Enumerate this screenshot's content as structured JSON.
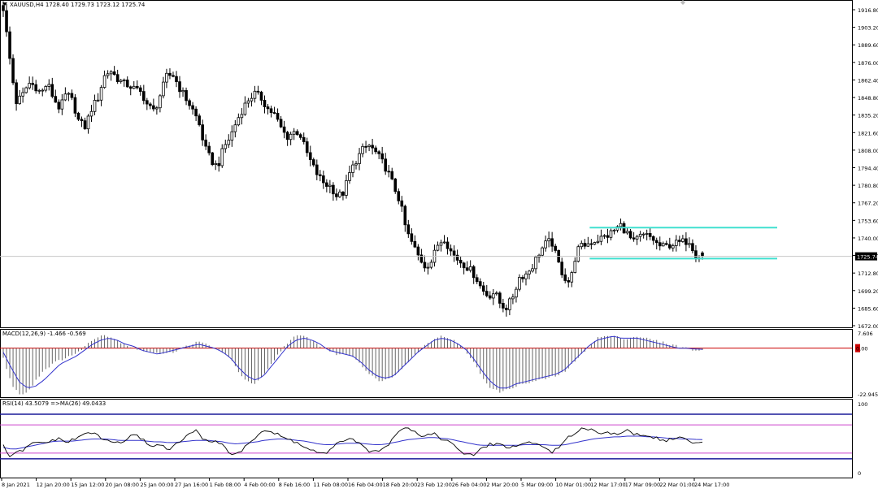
{
  "window": {
    "menu_icon": "triangle-down-icon",
    "symbol_header": "XAUUSD,H4  1728.40 1729.73 1723.12 1725.74",
    "corner_icon": "diamond-icon"
  },
  "colors": {
    "background": "#ffffff",
    "frame": "#000000",
    "candle": "#000000",
    "channel": "#40e0d0",
    "signal_line": "#3333cc",
    "zero_line": "#cc0000",
    "rsi_band": "#cc44cc",
    "rsi_level": "#1a1a99",
    "last_price_label_bg": "#000000",
    "macd_zero_label_bg": "#cc0000"
  },
  "price_panel": {
    "y_tick_labels": [
      "1916.80",
      "1903.20",
      "1889.60",
      "1876.00",
      "1862.40",
      "1848.80",
      "1835.20",
      "1821.60",
      "1808.00",
      "1794.40",
      "1780.80",
      "1767.20",
      "1753.60",
      "1740.00",
      "1726.40",
      "1712.80",
      "1699.20",
      "1685.60",
      "1672.00"
    ],
    "last_price_label": "1725.74"
  },
  "macd_panel": {
    "header": "MACD(12,26,9) -1.466 -0.569",
    "y_tick_labels": [
      "7.606",
      "-22.945"
    ],
    "zero_label": "0.00"
  },
  "rsi_panel": {
    "header": "RSI(14) 43.5079  =>MA(26) 49.0433",
    "y_tick_labels": [
      "100",
      "0"
    ]
  },
  "time_axis": {
    "labels": [
      "8 Jan 2021",
      "12 Jan 20:00",
      "15 Jan 12:00",
      "20 Jan 08:00",
      "25 Jan 00:00",
      "27 Jan 16:00",
      "1 Feb 08:00",
      "4 Feb 00:00",
      "8 Feb 16:00",
      "11 Feb 08:00",
      "16 Feb 04:00",
      "18 Feb 20:00",
      "23 Feb 12:00",
      "26 Feb 04:00",
      "2 Mar 20:00",
      "5 Mar 09:00",
      "10 Mar 01:00",
      "12 Mar 17:00",
      "17 Mar 09:00",
      "22 Mar 01:00",
      "24 Mar 17:00"
    ]
  },
  "chart_data": [
    {
      "type": "candlestick",
      "symbol": "XAUUSD",
      "timeframe": "H4",
      "last_bar": {
        "open": 1728.4,
        "high": 1729.73,
        "low": 1723.12,
        "close": 1725.74
      },
      "ylim": [
        1672.0,
        1916.8
      ],
      "x_tick_labels": [
        "8 Jan 2021",
        "12 Jan 20:00",
        "15 Jan 12:00",
        "20 Jan 08:00",
        "25 Jan 00:00",
        "27 Jan 16:00",
        "1 Feb 08:00",
        "4 Feb 00:00",
        "8 Feb 16:00",
        "11 Feb 08:00",
        "16 Feb 04:00",
        "18 Feb 20:00",
        "23 Feb 12:00",
        "26 Feb 04:00",
        "2 Mar 20:00",
        "5 Mar 09:00",
        "10 Mar 01:00",
        "12 Mar 17:00",
        "17 Mar 09:00",
        "22 Mar 01:00",
        "24 Mar 17:00"
      ],
      "close_path": [
        1918,
        1880,
        1845,
        1850,
        1860,
        1858,
        1852,
        1860,
        1848,
        1840,
        1852,
        1846,
        1830,
        1826,
        1840,
        1848,
        1865,
        1870,
        1864,
        1860,
        1858,
        1855,
        1852,
        1842,
        1838,
        1852,
        1866,
        1866,
        1856,
        1848,
        1840,
        1830,
        1810,
        1800,
        1795,
        1810,
        1818,
        1830,
        1840,
        1848,
        1852,
        1848,
        1840,
        1836,
        1826,
        1818,
        1822,
        1822,
        1808,
        1797,
        1788,
        1782,
        1780,
        1772,
        1775,
        1790,
        1800,
        1808,
        1812,
        1807,
        1800,
        1792,
        1780,
        1768,
        1745,
        1735,
        1725,
        1718,
        1722,
        1735,
        1740,
        1730,
        1724,
        1720,
        1716,
        1710,
        1700,
        1695,
        1698,
        1688,
        1686,
        1696,
        1710,
        1712,
        1718,
        1728,
        1735,
        1738,
        1722,
        1710,
        1705,
        1730,
        1734,
        1736,
        1738,
        1740,
        1742,
        1746,
        1750,
        1744,
        1736,
        1741,
        1742,
        1740,
        1734,
        1733,
        1735,
        1736,
        1737,
        1738,
        1726,
        1725.74
      ],
      "channel": {
        "upper": 1748.0,
        "lower": 1724.0
      },
      "annotations": []
    },
    {
      "type": "macd",
      "parameters": [
        12,
        26,
        9
      ],
      "title": "MACD(12,26,9) -1.466 -0.569",
      "values": {
        "main": -1.466,
        "signal": -0.569
      },
      "ylim": [
        -22.945,
        7.606
      ],
      "histogram_path": [
        -5,
        -18,
        -23,
        -22,
        -16,
        -11,
        -8,
        -6,
        -4,
        -3,
        1,
        4,
        7,
        6,
        4,
        2,
        0,
        -1,
        -2,
        -3,
        -2,
        -2,
        0,
        2,
        3,
        2,
        0,
        -2,
        -6,
        -12,
        -17,
        -18,
        -14,
        -8,
        -2,
        3,
        6,
        6,
        4,
        1,
        -1,
        -3,
        -3,
        -4,
        -8,
        -13,
        -16,
        -16,
        -14,
        -10,
        -6,
        -2,
        2,
        5,
        6,
        5,
        2,
        -2,
        -8,
        -15,
        -20,
        -22,
        -21,
        -19,
        -18,
        -17,
        -16,
        -15,
        -14,
        -12,
        -8,
        -4,
        1,
        5,
        6,
        6,
        5,
        5,
        6,
        5,
        4,
        3,
        2,
        1,
        0,
        -1,
        -1.466
      ],
      "signal_path": [
        -2,
        -10,
        -17,
        -20,
        -19,
        -16,
        -12,
        -8,
        -6,
        -4,
        -1,
        2,
        4,
        5,
        4,
        2,
        1,
        -1,
        -2,
        -3,
        -2,
        -1,
        0,
        1,
        2,
        1,
        0,
        -2,
        -5,
        -10,
        -14,
        -16,
        -14,
        -9,
        -4,
        1,
        4,
        5,
        4,
        2,
        -1,
        -2,
        -3,
        -4,
        -7,
        -11,
        -14,
        -15,
        -14,
        -10,
        -6,
        -2,
        1,
        4,
        5,
        4,
        2,
        -1,
        -6,
        -12,
        -17,
        -20,
        -20,
        -18,
        -17,
        -16,
        -15,
        -14,
        -13,
        -11,
        -7,
        -3,
        1,
        4,
        5,
        6,
        5,
        5,
        5,
        4,
        3,
        2,
        1,
        0,
        0,
        -0.4,
        -0.569
      ]
    },
    {
      "type": "rsi",
      "period": 14,
      "ma_period": 26,
      "title": "RSI(14) 43.5079  =>MA(26) 49.0433",
      "values": {
        "rsi": 43.5079,
        "ma": 49.0433
      },
      "ylim": [
        0,
        100
      ],
      "levels": {
        "upper_band": 70,
        "lower_band": 30,
        "outer_high": 85,
        "outer_low": 22
      },
      "rsi_path": [
        40,
        25,
        30,
        35,
        42,
        45,
        44,
        48,
        50,
        46,
        48,
        52,
        58,
        60,
        52,
        48,
        46,
        44,
        50,
        55,
        52,
        44,
        40,
        42,
        36,
        40,
        48,
        56,
        62,
        52,
        48,
        45,
        44,
        30,
        28,
        35,
        45,
        55,
        63,
        60,
        56,
        52,
        48,
        44,
        38,
        34,
        30,
        28,
        36,
        46,
        50,
        48,
        42,
        36,
        30,
        34,
        40,
        55,
        65,
        68,
        60,
        55,
        56,
        58,
        50,
        45,
        40,
        30,
        26,
        30,
        38,
        42,
        44,
        40,
        38,
        40,
        44,
        46,
        42,
        38,
        32,
        36,
        48,
        56,
        64,
        66,
        62,
        60,
        58,
        60,
        56,
        62,
        58,
        55,
        54,
        52,
        50,
        48,
        50,
        54,
        46,
        44,
        43.5079
      ],
      "ma_path": [
        38,
        36,
        36,
        38,
        40,
        42,
        44,
        46,
        47,
        47,
        47,
        48,
        49,
        50,
        50,
        50,
        49,
        48,
        48,
        48,
        48,
        47,
        46,
        46,
        45,
        45,
        46,
        47,
        48,
        48,
        48,
        47,
        46,
        44,
        43,
        44,
        45,
        46,
        48,
        49,
        50,
        50,
        49,
        48,
        47,
        45,
        43,
        42,
        42,
        43,
        44,
        44,
        44,
        43,
        42,
        42,
        43,
        45,
        47,
        49,
        50,
        51,
        52,
        52,
        51,
        50,
        48,
        46,
        44,
        42,
        41,
        41,
        41,
        41,
        41,
        41,
        42,
        42,
        42,
        42,
        41,
        41,
        42,
        44,
        46,
        48,
        50,
        51,
        52,
        53,
        53,
        54,
        54,
        54,
        53,
        53,
        52,
        51,
        51,
        50,
        50,
        49.5,
        49.0433
      ]
    }
  ]
}
